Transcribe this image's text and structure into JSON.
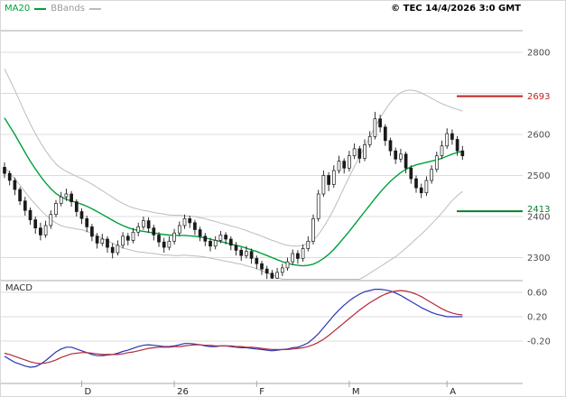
{
  "legend": {
    "ma20_label": "MA20",
    "bbands_label": "BBands"
  },
  "header": {
    "copyright": "© TEC 14/4/2026 3:0 GMT"
  },
  "macd_panel": {
    "title": "MACD"
  },
  "colors": {
    "ma_line": "#00a03c",
    "bband_line": "#bcbcbc",
    "candle": "#1a1a1a",
    "grid": "#dcdcdc",
    "frame": "#a8a8a8",
    "axis_text": "#4a4a4a",
    "month_text": "#222222",
    "macd_line": "#2a35b4",
    "macd_signal": "#b42a3c",
    "resistance": "#c22020",
    "support": "#008228"
  },
  "chart_data": {
    "type": "candlestick",
    "panels": [
      "price",
      "macd"
    ],
    "axes": {
      "price_gridlines": [
        2800,
        2700,
        2600,
        2500,
        2400,
        2300
      ],
      "price_labels": [
        2800,
        2600,
        2500,
        2400,
        2300
      ],
      "price_range_approx": [
        2240,
        2850
      ],
      "macd_gridlines": [
        0.6,
        0.2,
        -0.2
      ],
      "month_labels": [
        {
          "text": "D",
          "index": 15
        },
        {
          "text": "26",
          "index": 33
        },
        {
          "text": "F",
          "index": 49
        },
        {
          "text": "M",
          "index": 67
        },
        {
          "text": "A",
          "index": 86
        }
      ]
    },
    "levels": {
      "resistance": {
        "value": 2693,
        "label": "2693"
      },
      "support": {
        "value": 2413,
        "label": "2413"
      }
    },
    "series": {
      "candles_ohlc": [
        [
          2520,
          2532,
          2494,
          2505
        ],
        [
          2505,
          2512,
          2476,
          2488
        ],
        [
          2488,
          2495,
          2452,
          2466
        ],
        [
          2466,
          2472,
          2428,
          2438
        ],
        [
          2438,
          2448,
          2402,
          2415
        ],
        [
          2415,
          2422,
          2380,
          2392
        ],
        [
          2392,
          2400,
          2358,
          2372
        ],
        [
          2372,
          2385,
          2342,
          2355
        ],
        [
          2355,
          2390,
          2348,
          2378
        ],
        [
          2378,
          2415,
          2370,
          2405
        ],
        [
          2405,
          2440,
          2398,
          2432
        ],
        [
          2432,
          2460,
          2425,
          2448
        ],
        [
          2448,
          2468,
          2438,
          2455
        ],
        [
          2455,
          2462,
          2424,
          2436
        ],
        [
          2436,
          2442,
          2400,
          2412
        ],
        [
          2412,
          2420,
          2382,
          2395
        ],
        [
          2395,
          2402,
          2362,
          2375
        ],
        [
          2375,
          2382,
          2340,
          2352
        ],
        [
          2352,
          2360,
          2322,
          2335
        ],
        [
          2335,
          2358,
          2328,
          2345
        ],
        [
          2345,
          2352,
          2312,
          2325
        ],
        [
          2325,
          2335,
          2298,
          2312
        ],
        [
          2312,
          2342,
          2305,
          2330
        ],
        [
          2330,
          2362,
          2322,
          2352
        ],
        [
          2352,
          2360,
          2330,
          2342
        ],
        [
          2342,
          2372,
          2335,
          2362
        ],
        [
          2362,
          2385,
          2352,
          2375
        ],
        [
          2375,
          2400,
          2368,
          2390
        ],
        [
          2390,
          2398,
          2360,
          2372
        ],
        [
          2372,
          2380,
          2342,
          2355
        ],
        [
          2355,
          2362,
          2326,
          2338
        ],
        [
          2338,
          2348,
          2312,
          2325
        ],
        [
          2325,
          2352,
          2318,
          2340
        ],
        [
          2340,
          2370,
          2332,
          2360
        ],
        [
          2360,
          2388,
          2352,
          2378
        ],
        [
          2378,
          2405,
          2370,
          2395
        ],
        [
          2395,
          2402,
          2372,
          2385
        ],
        [
          2385,
          2392,
          2355,
          2368
        ],
        [
          2368,
          2375,
          2340,
          2352
        ],
        [
          2352,
          2360,
          2328,
          2340
        ],
        [
          2340,
          2348,
          2315,
          2328
        ],
        [
          2328,
          2352,
          2320,
          2342
        ],
        [
          2342,
          2365,
          2335,
          2355
        ],
        [
          2355,
          2362,
          2332,
          2345
        ],
        [
          2345,
          2352,
          2318,
          2330
        ],
        [
          2330,
          2338,
          2305,
          2318
        ],
        [
          2318,
          2325,
          2292,
          2305
        ],
        [
          2305,
          2328,
          2298,
          2315
        ],
        [
          2315,
          2322,
          2285,
          2298
        ],
        [
          2298,
          2305,
          2272,
          2285
        ],
        [
          2285,
          2292,
          2258,
          2272
        ],
        [
          2272,
          2280,
          2248,
          2262
        ],
        [
          2262,
          2270,
          2248,
          2250
        ],
        [
          2250,
          2275,
          2248,
          2264
        ],
        [
          2264,
          2285,
          2255,
          2275
        ],
        [
          2275,
          2300,
          2268,
          2290
        ],
        [
          2290,
          2320,
          2282,
          2310
        ],
        [
          2310,
          2318,
          2285,
          2298
        ],
        [
          2298,
          2332,
          2290,
          2322
        ],
        [
          2322,
          2352,
          2315,
          2340
        ],
        [
          2340,
          2405,
          2332,
          2395
        ],
        [
          2395,
          2465,
          2388,
          2455
        ],
        [
          2455,
          2512,
          2448,
          2500
        ],
        [
          2500,
          2508,
          2462,
          2478
        ],
        [
          2478,
          2525,
          2470,
          2512
        ],
        [
          2512,
          2548,
          2505,
          2535
        ],
        [
          2535,
          2542,
          2505,
          2518
        ],
        [
          2518,
          2560,
          2510,
          2548
        ],
        [
          2548,
          2578,
          2540,
          2565
        ],
        [
          2565,
          2572,
          2530,
          2542
        ],
        [
          2542,
          2588,
          2535,
          2575
        ],
        [
          2575,
          2608,
          2568,
          2595
        ],
        [
          2595,
          2655,
          2588,
          2638
        ],
        [
          2638,
          2648,
          2605,
          2618
        ],
        [
          2618,
          2625,
          2572,
          2585
        ],
        [
          2585,
          2592,
          2548,
          2560
        ],
        [
          2560,
          2568,
          2528,
          2540
        ],
        [
          2540,
          2565,
          2532,
          2552
        ],
        [
          2552,
          2558,
          2505,
          2518
        ],
        [
          2518,
          2525,
          2480,
          2492
        ],
        [
          2492,
          2500,
          2458,
          2470
        ],
        [
          2470,
          2480,
          2445,
          2458
        ],
        [
          2458,
          2498,
          2450,
          2488
        ],
        [
          2488,
          2525,
          2480,
          2515
        ],
        [
          2515,
          2558,
          2508,
          2548
        ],
        [
          2548,
          2585,
          2540,
          2572
        ],
        [
          2572,
          2615,
          2565,
          2602
        ],
        [
          2602,
          2612,
          2575,
          2588
        ],
        [
          2588,
          2596,
          2548,
          2560
        ],
        [
          2560,
          2572,
          2538,
          2548
        ]
      ],
      "ma20": [
        2640,
        2620,
        2600,
        2578,
        2556,
        2535,
        2516,
        2498,
        2482,
        2468,
        2456,
        2448,
        2442,
        2438,
        2434,
        2430,
        2425,
        2419,
        2412,
        2405,
        2398,
        2391,
        2384,
        2378,
        2373,
        2369,
        2366,
        2364,
        2362,
        2360,
        2358,
        2356,
        2355,
        2354,
        2354,
        2354,
        2353,
        2352,
        2350,
        2348,
        2345,
        2342,
        2339,
        2336,
        2333,
        2330,
        2327,
        2323,
        2319,
        2315,
        2310,
        2305,
        2300,
        2295,
        2290,
        2286,
        2283,
        2281,
        2280,
        2281,
        2284,
        2290,
        2298,
        2308,
        2320,
        2334,
        2349,
        2364,
        2380,
        2396,
        2412,
        2428,
        2444,
        2459,
        2473,
        2486,
        2497,
        2507,
        2515,
        2521,
        2526,
        2529,
        2532,
        2535,
        2538,
        2542,
        2547,
        2552,
        2556,
        2559
      ],
      "bb_upper": [
        2760,
        2734,
        2708,
        2680,
        2652,
        2626,
        2602,
        2580,
        2560,
        2543,
        2528,
        2518,
        2510,
        2504,
        2498,
        2492,
        2486,
        2479,
        2471,
        2463,
        2455,
        2447,
        2439,
        2432,
        2426,
        2421,
        2418,
        2415,
        2413,
        2410,
        2408,
        2406,
        2404,
        2403,
        2403,
        2402,
        2401,
        2400,
        2397,
        2395,
        2391,
        2388,
        2384,
        2381,
        2377,
        2374,
        2370,
        2366,
        2361,
        2357,
        2352,
        2347,
        2342,
        2338,
        2333,
        2330,
        2328,
        2328,
        2330,
        2335,
        2342,
        2356,
        2374,
        2395,
        2418,
        2444,
        2471,
        2497,
        2522,
        2546,
        2570,
        2594,
        2618,
        2640,
        2660,
        2678,
        2692,
        2702,
        2707,
        2708,
        2706,
        2701,
        2695,
        2688,
        2681,
        2675,
        2670,
        2665,
        2661,
        2657
      ],
      "bb_lower": [
        2520,
        2506,
        2492,
        2476,
        2460,
        2444,
        2430,
        2416,
        2404,
        2393,
        2384,
        2378,
        2374,
        2372,
        2370,
        2368,
        2364,
        2359,
        2353,
        2347,
        2341,
        2335,
        2329,
        2324,
        2320,
        2317,
        2314,
        2313,
        2311,
        2310,
        2308,
        2306,
        2306,
        2305,
        2305,
        2306,
        2305,
        2304,
        2303,
        2301,
        2299,
        2296,
        2294,
        2291,
        2289,
        2286,
        2284,
        2280,
        2277,
        2273,
        2268,
        2263,
        2258,
        2252,
        2247,
        2242,
        2238,
        2234,
        2230,
        2227,
        2226,
        2224,
        2222,
        2221,
        2222,
        2224,
        2227,
        2231,
        2238,
        2246,
        2254,
        2262,
        2270,
        2278,
        2286,
        2294,
        2302,
        2312,
        2323,
        2334,
        2346,
        2357,
        2369,
        2382,
        2395,
        2409,
        2424,
        2439,
        2451,
        2461
      ],
      "macd": [
        -0.45,
        -0.5,
        -0.55,
        -0.58,
        -0.61,
        -0.63,
        -0.62,
        -0.58,
        -0.52,
        -0.45,
        -0.38,
        -0.33,
        -0.3,
        -0.3,
        -0.33,
        -0.36,
        -0.39,
        -0.42,
        -0.44,
        -0.44,
        -0.43,
        -0.42,
        -0.4,
        -0.37,
        -0.35,
        -0.32,
        -0.29,
        -0.27,
        -0.26,
        -0.27,
        -0.28,
        -0.29,
        -0.29,
        -0.28,
        -0.26,
        -0.24,
        -0.24,
        -0.25,
        -0.26,
        -0.28,
        -0.29,
        -0.29,
        -0.28,
        -0.28,
        -0.29,
        -0.3,
        -0.31,
        -0.31,
        -0.32,
        -0.33,
        -0.34,
        -0.35,
        -0.36,
        -0.35,
        -0.34,
        -0.33,
        -0.31,
        -0.3,
        -0.27,
        -0.23,
        -0.16,
        -0.08,
        0.02,
        0.12,
        0.22,
        0.31,
        0.39,
        0.46,
        0.52,
        0.57,
        0.61,
        0.63,
        0.65,
        0.65,
        0.64,
        0.62,
        0.59,
        0.55,
        0.5,
        0.45,
        0.4,
        0.35,
        0.31,
        0.27,
        0.24,
        0.22,
        0.2,
        0.2,
        0.2,
        0.2
      ],
      "macd_signal": [
        -0.4,
        -0.42,
        -0.45,
        -0.48,
        -0.51,
        -0.54,
        -0.56,
        -0.57,
        -0.56,
        -0.54,
        -0.51,
        -0.47,
        -0.44,
        -0.41,
        -0.4,
        -0.39,
        -0.39,
        -0.4,
        -0.41,
        -0.42,
        -0.42,
        -0.42,
        -0.42,
        -0.41,
        -0.39,
        -0.38,
        -0.36,
        -0.34,
        -0.32,
        -0.31,
        -0.3,
        -0.3,
        -0.3,
        -0.29,
        -0.29,
        -0.28,
        -0.27,
        -0.26,
        -0.26,
        -0.27,
        -0.27,
        -0.28,
        -0.28,
        -0.28,
        -0.28,
        -0.29,
        -0.29,
        -0.3,
        -0.3,
        -0.31,
        -0.32,
        -0.33,
        -0.34,
        -0.34,
        -0.34,
        -0.34,
        -0.33,
        -0.32,
        -0.31,
        -0.29,
        -0.26,
        -0.22,
        -0.17,
        -0.11,
        -0.04,
        0.03,
        0.1,
        0.17,
        0.24,
        0.31,
        0.37,
        0.43,
        0.48,
        0.53,
        0.57,
        0.6,
        0.62,
        0.63,
        0.62,
        0.6,
        0.57,
        0.53,
        0.48,
        0.43,
        0.38,
        0.33,
        0.29,
        0.26,
        0.24,
        0.23
      ]
    }
  }
}
